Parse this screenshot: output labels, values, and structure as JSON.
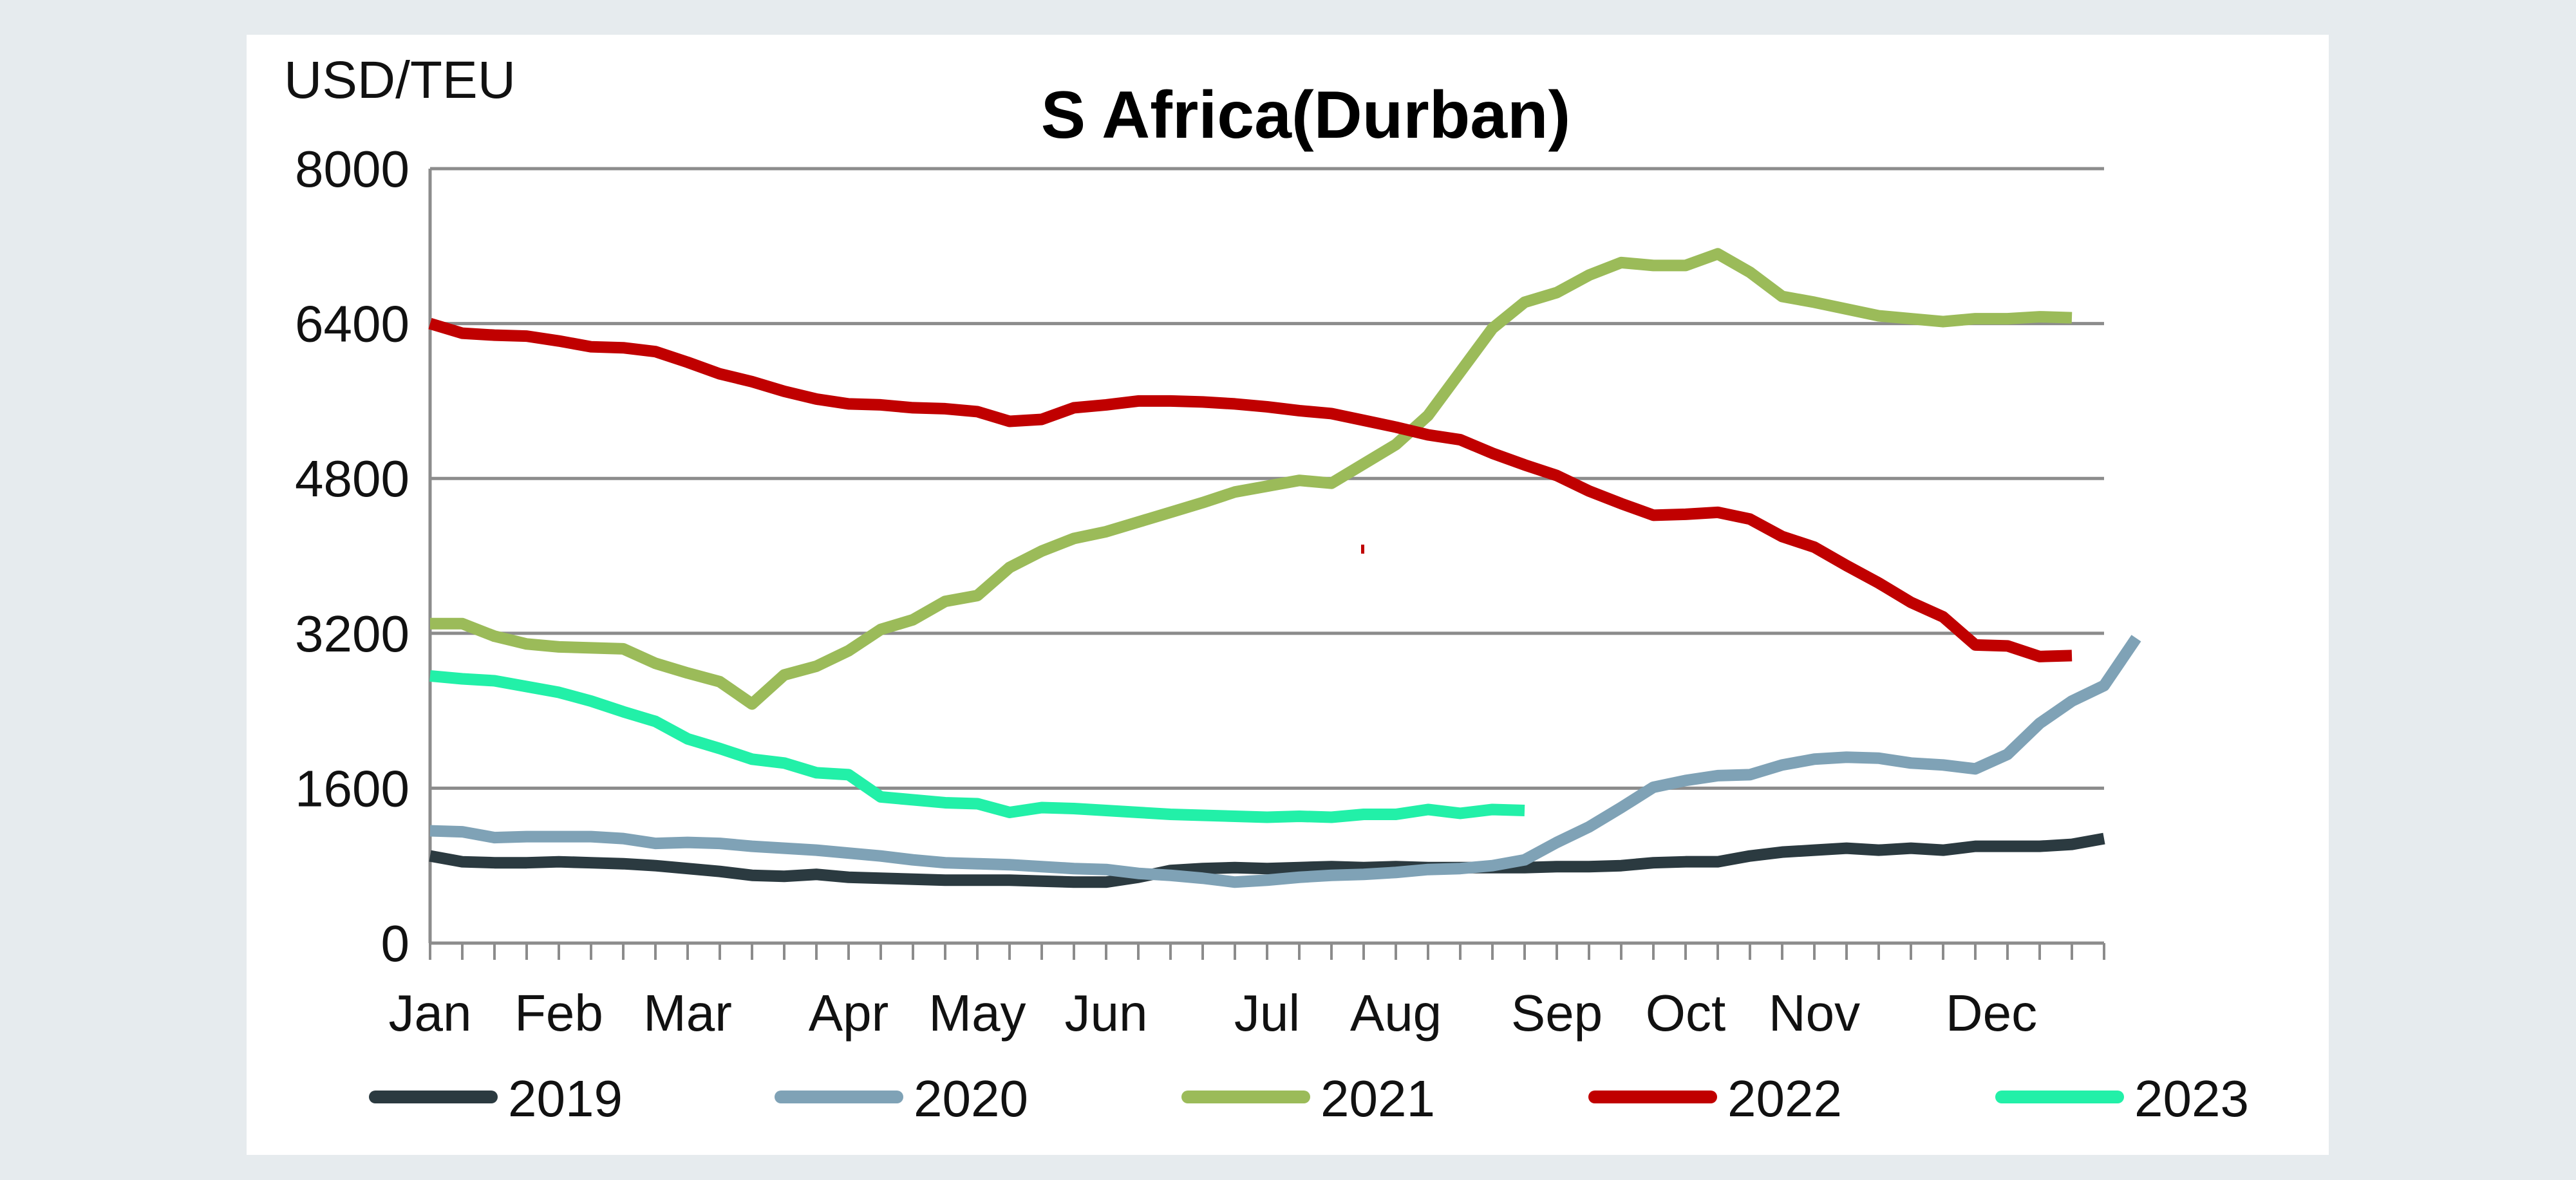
{
  "chart_data": {
    "type": "line",
    "title": "S Africa(Durban)",
    "ylabel": "USD/TEU",
    "xlabel": "",
    "ylim": [
      0,
      8000
    ],
    "yticks": [
      "0",
      "1600",
      "3200",
      "4800",
      "6400",
      "8000"
    ],
    "ytick_values": [
      0,
      1600,
      3200,
      4800,
      6400,
      8000
    ],
    "x_range": [
      0,
      52
    ],
    "month_labels": [
      "Jan",
      "Feb",
      "Mar",
      "Apr",
      "May",
      "Jun",
      "Jul",
      "Aug",
      "Sep",
      "Oct",
      "Nov",
      "Dec"
    ],
    "month_positions": [
      0,
      4,
      8,
      13,
      17,
      21,
      26,
      30,
      35,
      39,
      43,
      48.5
    ],
    "grid": true,
    "legend_position": "bottom",
    "series": [
      {
        "name": "2019",
        "color": "#2b3a40",
        "values": [
          900,
          840,
          830,
          830,
          840,
          830,
          820,
          800,
          770,
          740,
          700,
          690,
          710,
          680,
          670,
          660,
          650,
          650,
          650,
          640,
          630,
          630,
          680,
          750,
          770,
          780,
          770,
          780,
          790,
          780,
          790,
          780,
          780,
          780,
          780,
          790,
          790,
          800,
          830,
          840,
          840,
          900,
          940,
          960,
          980,
          960,
          980,
          960,
          1000,
          1000,
          1000,
          1020,
          1080
        ]
      },
      {
        "name": "2020",
        "color": "#7fa2b6",
        "values": [
          1160,
          1150,
          1090,
          1100,
          1100,
          1100,
          1080,
          1030,
          1040,
          1030,
          1000,
          980,
          960,
          930,
          900,
          860,
          830,
          820,
          810,
          790,
          770,
          760,
          720,
          700,
          670,
          630,
          650,
          680,
          700,
          710,
          730,
          760,
          770,
          800,
          860,
          1040,
          1200,
          1400,
          1610,
          1680,
          1730,
          1740,
          1840,
          1900,
          1920,
          1910,
          1860,
          1840,
          1800,
          1950,
          2270,
          2500,
          2660,
          3150
        ]
      },
      {
        "name": "2021",
        "color": "#9bbb59",
        "values": [
          3300,
          3300,
          3170,
          3090,
          3060,
          3050,
          3040,
          2890,
          2790,
          2700,
          2470,
          2770,
          2860,
          3020,
          3240,
          3340,
          3530,
          3590,
          3880,
          4050,
          4180,
          4250,
          4350,
          4450,
          4550,
          4660,
          4720,
          4780,
          4750,
          4950,
          5150,
          5450,
          5900,
          6350,
          6620,
          6720,
          6900,
          7030,
          7000,
          7000,
          7120,
          6930,
          6680,
          6620,
          6550,
          6480,
          6450,
          6420,
          6450,
          6450,
          6470,
          6460
        ]
      },
      {
        "name": "2022",
        "color": "#c00000",
        "values": [
          6400,
          6300,
          6280,
          6270,
          6220,
          6160,
          6150,
          6110,
          6000,
          5880,
          5800,
          5700,
          5620,
          5570,
          5560,
          5530,
          5520,
          5490,
          5390,
          5410,
          5530,
          5560,
          5600,
          5600,
          5590,
          5570,
          5540,
          5500,
          5470,
          5400,
          5330,
          5250,
          5200,
          5060,
          4940,
          4830,
          4670,
          4540,
          4420,
          4430,
          4450,
          4380,
          4200,
          4090,
          3900,
          3720,
          3520,
          3370,
          3080,
          3070,
          2960,
          2970
        ]
      },
      {
        "name": "2023",
        "color": "#22f0a8",
        "values": [
          2760,
          2730,
          2710,
          2650,
          2590,
          2500,
          2390,
          2290,
          2110,
          2010,
          1900,
          1860,
          1760,
          1740,
          1510,
          1480,
          1450,
          1440,
          1350,
          1400,
          1390,
          1370,
          1350,
          1330,
          1320,
          1310,
          1300,
          1310,
          1300,
          1330,
          1330,
          1380,
          1340,
          1380,
          1370
        ]
      }
    ]
  },
  "stray_mark_color": "#c00000"
}
